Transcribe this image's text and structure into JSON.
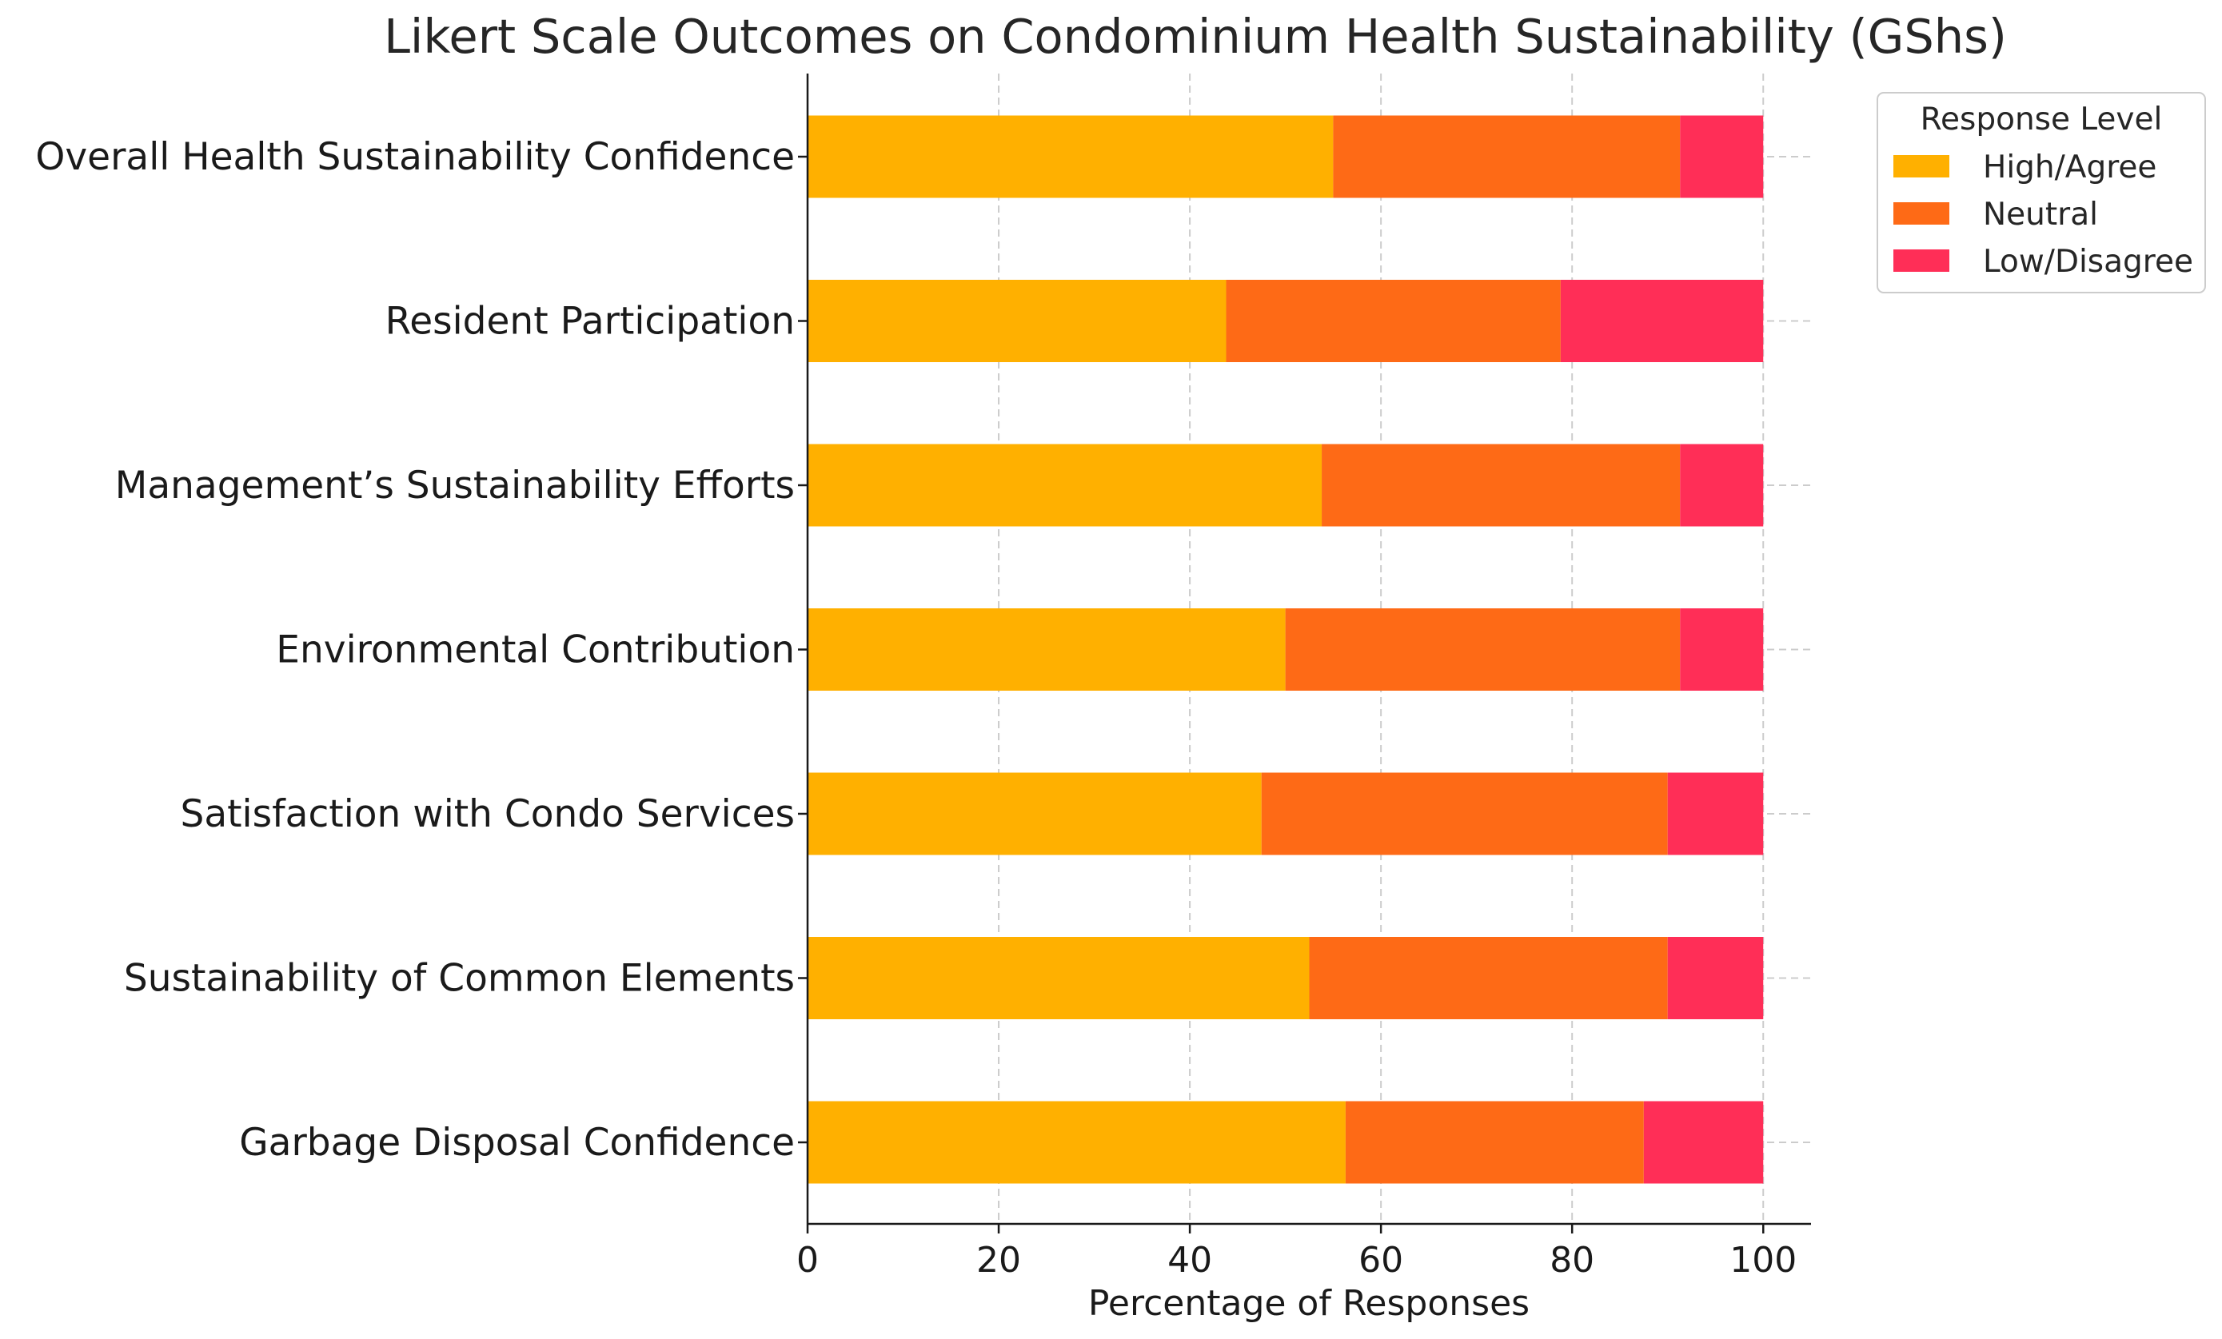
{
  "chart_data": {
    "type": "bar",
    "orientation": "horizontal",
    "stacked": true,
    "title": "Likert Scale Outcomes on Condominium Health Sustainability (GShs)",
    "xlabel": "Percentage of Responses",
    "ylabel": "",
    "xlim": [
      0,
      105
    ],
    "xticks": [
      0,
      20,
      40,
      60,
      80,
      100
    ],
    "grid": true,
    "legend_title": "Response Level",
    "legend_position": "top-right outside",
    "categories": [
      "Overall Health Sustainability Confidence",
      "Resident Participation",
      "Management’s Sustainability Efforts",
      "Environmental Contribution",
      "Satisfaction with Condo Services",
      "Sustainability of Common Elements",
      "Garbage Disposal Confidence"
    ],
    "series": [
      {
        "name": "High/Agree",
        "color": "#FFB000",
        "values": [
          55,
          43.8,
          53.8,
          50,
          47.5,
          52.5,
          56.3
        ]
      },
      {
        "name": "Neutral",
        "color": "#FE6A16",
        "values": [
          36.3,
          35,
          37.5,
          41.3,
          42.5,
          37.5,
          31.2
        ]
      },
      {
        "name": "Low/Disagree",
        "color": "#FF2E57",
        "values": [
          8.7,
          21.2,
          8.7,
          8.7,
          10,
          10,
          12.5
        ]
      }
    ]
  }
}
